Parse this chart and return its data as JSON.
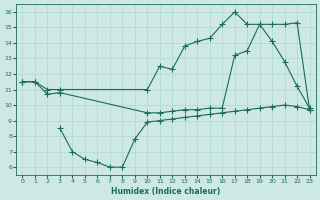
{
  "bg_color": "#cde8e5",
  "line_color": "#1a6b5a",
  "xlabel": "Humidex (Indice chaleur)",
  "xlim": [
    -0.5,
    23.5
  ],
  "ylim": [
    5.5,
    16.5
  ],
  "xticks": [
    0,
    1,
    2,
    3,
    4,
    5,
    6,
    7,
    8,
    9,
    10,
    11,
    12,
    13,
    14,
    15,
    16,
    17,
    18,
    19,
    20,
    21,
    22,
    23
  ],
  "yticks": [
    6,
    7,
    8,
    9,
    10,
    11,
    12,
    13,
    14,
    15,
    16
  ],
  "line1_x": [
    0,
    1,
    2,
    3,
    10,
    11,
    12,
    13,
    14,
    15,
    16,
    17,
    18,
    19,
    20,
    21,
    22,
    23
  ],
  "line1_y": [
    11.5,
    11.5,
    11.0,
    11.0,
    11.0,
    12.5,
    12.3,
    13.8,
    14.1,
    14.3,
    15.2,
    16.0,
    15.2,
    15.2,
    14.1,
    12.8,
    11.2,
    9.8
  ],
  "line2_x": [
    0,
    1,
    2,
    3,
    10,
    11,
    12,
    13,
    14,
    15,
    16,
    17,
    18,
    19,
    20,
    21,
    22,
    23
  ],
  "line2_y": [
    11.5,
    11.5,
    10.7,
    10.8,
    9.5,
    9.5,
    9.6,
    9.7,
    9.7,
    9.8,
    9.8,
    13.2,
    13.5,
    15.2,
    15.2,
    15.2,
    15.3,
    9.7
  ],
  "line3_x": [
    3,
    4,
    5,
    6,
    7,
    8,
    9,
    10,
    11,
    12,
    13,
    14,
    15,
    16,
    17,
    18,
    19,
    20,
    21,
    22,
    23
  ],
  "line3_y": [
    8.5,
    7.0,
    6.5,
    6.3,
    6.0,
    6.0,
    7.8,
    8.9,
    9.0,
    9.1,
    9.2,
    9.3,
    9.4,
    9.5,
    9.6,
    9.7,
    9.8,
    9.9,
    10.0,
    9.9,
    9.7
  ]
}
